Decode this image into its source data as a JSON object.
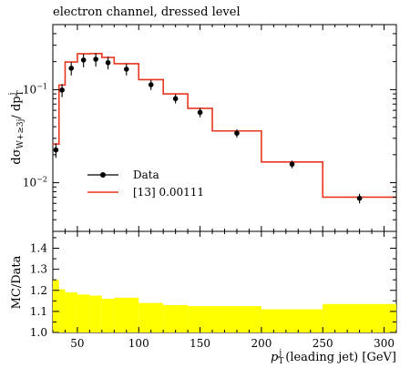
{
  "chart_data": {
    "type": "line",
    "title": "electron channel, dressed level",
    "top": {
      "ylabel_main": "dσ",
      "ylabel_sub": "W+≥3j",
      "ylabel_den": "/ dp",
      "ylabel_den_sub": "T",
      "ylabel_den_sup": "j",
      "yscale": "log",
      "ylim": [
        0.003,
        0.5
      ],
      "yticks": [
        {
          "value": 0.1,
          "base": "10",
          "exp": "−1"
        },
        {
          "value": 0.01,
          "base": "10",
          "exp": "−2"
        }
      ],
      "legend_position": "lower-left",
      "data_series": {
        "name": "Data",
        "color": "#000000",
        "points": [
          {
            "x": 32.5,
            "y": 0.0225,
            "err": 0.004
          },
          {
            "x": 37.5,
            "y": 0.099,
            "err": 0.016
          },
          {
            "x": 45,
            "y": 0.17,
            "err": 0.028
          },
          {
            "x": 55,
            "y": 0.208,
            "err": 0.034
          },
          {
            "x": 65,
            "y": 0.212,
            "err": 0.035
          },
          {
            "x": 75,
            "y": 0.195,
            "err": 0.03
          },
          {
            "x": 90,
            "y": 0.166,
            "err": 0.024
          },
          {
            "x": 110,
            "y": 0.113,
            "err": 0.014
          },
          {
            "x": 130,
            "y": 0.08,
            "err": 0.009
          },
          {
            "x": 150,
            "y": 0.057,
            "err": 0.0065
          },
          {
            "x": 180,
            "y": 0.034,
            "err": 0.0035
          },
          {
            "x": 225,
            "y": 0.0158,
            "err": 0.0015
          },
          {
            "x": 280,
            "y": 0.0068,
            "err": 0.0008
          }
        ]
      },
      "mc_series": {
        "name": "[13] 0.00111",
        "color": "#e8361e",
        "edges": [
          30,
          35,
          40,
          50,
          60,
          70,
          80,
          100,
          120,
          140,
          160,
          200,
          250,
          310
        ],
        "values": [
          0.026,
          0.112,
          0.198,
          0.243,
          0.244,
          0.222,
          0.19,
          0.128,
          0.09,
          0.063,
          0.036,
          0.0167,
          0.007
        ]
      }
    },
    "bottom": {
      "ylabel": "MC/Data",
      "ylim": [
        1.0,
        1.48
      ],
      "yticks": [
        "1.0",
        "1.1",
        "1.2",
        "1.3",
        "1.4"
      ],
      "yticks_values": [
        1.0,
        1.1,
        1.2,
        1.3,
        1.4
      ],
      "band_color": "#ffff00",
      "band_edges": [
        30,
        35,
        40,
        50,
        60,
        70,
        80,
        100,
        120,
        140,
        160,
        200,
        250,
        310
      ],
      "band_upper": [
        1.25,
        1.205,
        1.19,
        1.18,
        1.175,
        1.16,
        1.165,
        1.14,
        1.13,
        1.125,
        1.125,
        1.11,
        1.135
      ],
      "band_lower": [
        1.0,
        1.0,
        1.0,
        1.0,
        1.0,
        1.0,
        1.0,
        1.0,
        1.0,
        1.0,
        1.0,
        1.0,
        1.0
      ]
    },
    "xaxis": {
      "xlim": [
        30,
        310
      ],
      "xticks": [
        50,
        100,
        150,
        200,
        250,
        300
      ],
      "xtick_labels": [
        "50",
        "100",
        "150",
        "200",
        "250",
        "300"
      ],
      "xlabel_main": "p",
      "xlabel_sub": "T",
      "xlabel_sup": "j",
      "xlabel_rest": " (leading jet) [GeV]"
    }
  }
}
